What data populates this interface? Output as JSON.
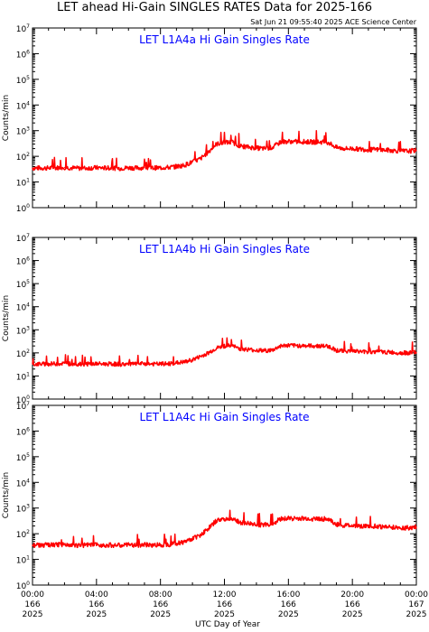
{
  "header": {
    "title": "LET ahead Hi-Gain SINGLES RATES Data for 2025-166",
    "timestamp": "Sat Jun 21 09:55:40 2025 ACE Science Center"
  },
  "chart_data": [
    {
      "type": "line",
      "title": "LET L1A4a Hi Gain Singles Rate",
      "ylabel": "Counts/min",
      "yscale": "log",
      "ylim": [
        1,
        10000000
      ],
      "xlim": [
        0,
        24
      ],
      "color": "#ff0000",
      "x_hours": [
        0,
        0.5,
        1,
        1.5,
        2,
        2.5,
        3,
        3.5,
        4,
        4.5,
        5,
        5.5,
        6,
        6.5,
        7,
        7.5,
        8,
        8.5,
        9,
        9.5,
        10,
        10.5,
        11,
        11.5,
        12,
        12.5,
        13,
        13.5,
        14,
        14.5,
        15,
        15.5,
        16,
        16.5,
        17,
        17.5,
        18,
        18.5,
        19,
        19.5,
        20,
        20.5,
        21,
        21.5,
        22,
        22.5,
        23,
        23.5,
        24
      ],
      "y": [
        35,
        35,
        35,
        36,
        37,
        35,
        34,
        35,
        36,
        35,
        35,
        34,
        36,
        35,
        36,
        35,
        36,
        37,
        40,
        45,
        60,
        80,
        150,
        300,
        350,
        350,
        250,
        230,
        210,
        200,
        220,
        360,
        380,
        370,
        370,
        360,
        360,
        350,
        220,
        200,
        200,
        190,
        180,
        185,
        175,
        170,
        160,
        160,
        170
      ]
    },
    {
      "type": "line",
      "title": "LET L1A4b Hi Gain Singles Rate",
      "ylabel": "Counts/min",
      "yscale": "log",
      "ylim": [
        1,
        10000000
      ],
      "xlim": [
        0,
        24
      ],
      "color": "#ff0000",
      "x_hours": [
        0,
        0.5,
        1,
        1.5,
        2,
        2.5,
        3,
        3.5,
        4,
        4.5,
        5,
        5.5,
        6,
        6.5,
        7,
        7.5,
        8,
        8.5,
        9,
        9.5,
        10,
        10.5,
        11,
        11.5,
        12,
        12.5,
        13,
        13.5,
        14,
        14.5,
        15,
        15.5,
        16,
        16.5,
        17,
        17.5,
        18,
        18.5,
        19,
        19.5,
        20,
        20.5,
        21,
        21.5,
        22,
        22.5,
        23,
        23.5,
        24
      ],
      "y": [
        32,
        33,
        33,
        34,
        35,
        33,
        32,
        33,
        34,
        33,
        33,
        32,
        33,
        33,
        34,
        33,
        33,
        34,
        37,
        40,
        50,
        70,
        100,
        160,
        200,
        200,
        150,
        140,
        130,
        125,
        130,
        200,
        210,
        205,
        205,
        200,
        200,
        195,
        130,
        120,
        120,
        115,
        110,
        112,
        108,
        105,
        100,
        100,
        105
      ]
    },
    {
      "type": "line",
      "title": "LET L1A4c Hi Gain Singles Rate",
      "ylabel": "Counts/min",
      "yscale": "log",
      "ylim": [
        1,
        10000000
      ],
      "xlim": [
        0,
        24
      ],
      "color": "#ff0000",
      "x_hours": [
        0,
        0.5,
        1,
        1.5,
        2,
        2.5,
        3,
        3.5,
        4,
        4.5,
        5,
        5.5,
        6,
        6.5,
        7,
        7.5,
        8,
        8.5,
        9,
        9.5,
        10,
        10.5,
        11,
        11.5,
        12,
        12.5,
        13,
        13.5,
        14,
        14.5,
        15,
        15.5,
        16,
        16.5,
        17,
        17.5,
        18,
        18.5,
        19,
        19.5,
        20,
        20.5,
        21,
        21.5,
        22,
        22.5,
        23,
        23.5,
        24
      ],
      "y": [
        36,
        36,
        36,
        37,
        38,
        36,
        35,
        36,
        37,
        36,
        36,
        35,
        37,
        36,
        37,
        36,
        37,
        38,
        42,
        48,
        65,
        90,
        160,
        320,
        380,
        370,
        270,
        250,
        230,
        220,
        240,
        380,
        400,
        390,
        390,
        380,
        380,
        370,
        230,
        210,
        210,
        200,
        190,
        195,
        185,
        180,
        170,
        170,
        180
      ]
    }
  ],
  "xaxis": {
    "label": "UTC Day of Year",
    "ticks": [
      {
        "time": "00:00",
        "day": "166",
        "year": "2025"
      },
      {
        "time": "04:00",
        "day": "166",
        "year": "2025"
      },
      {
        "time": "08:00",
        "day": "166",
        "year": "2025"
      },
      {
        "time": "12:00",
        "day": "166",
        "year": "2025"
      },
      {
        "time": "16:00",
        "day": "166",
        "year": "2025"
      },
      {
        "time": "20:00",
        "day": "166",
        "year": "2025"
      },
      {
        "time": "00:00",
        "day": "167",
        "year": "2025"
      }
    ]
  },
  "style": {
    "series_color": "#ff0000",
    "panel_title_color": "#0000ff"
  }
}
